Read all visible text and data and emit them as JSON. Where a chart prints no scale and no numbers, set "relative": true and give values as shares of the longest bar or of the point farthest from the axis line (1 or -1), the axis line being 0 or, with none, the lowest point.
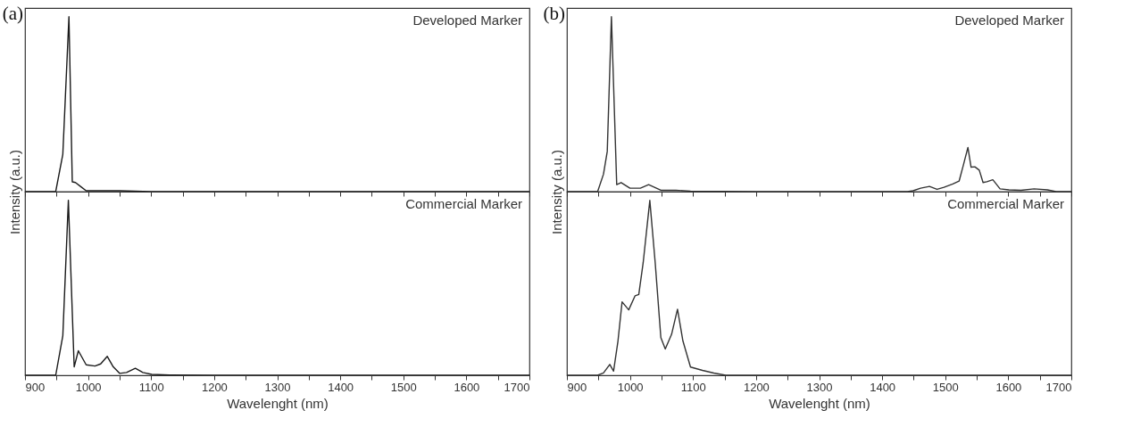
{
  "chart_data": [
    {
      "type": "line",
      "title": "(a)",
      "ylabel": "Intensity (a.u.)",
      "relative": true,
      "tick_labels": false,
      "annotations": [
        "Developed Marker"
      ],
      "xlim": [
        900,
        1700
      ],
      "xticks": [
        900,
        {
          "value": 950,
          "label": null
        },
        1000,
        {
          "value": 1050,
          "label": null
        },
        1100,
        {
          "value": 1150,
          "label": null
        },
        1200,
        {
          "value": 1250,
          "label": null
        },
        1300,
        {
          "value": 1350,
          "label": null
        },
        1400,
        {
          "value": 1450,
          "label": null
        },
        1500,
        {
          "value": 1550,
          "label": null
        },
        1600,
        {
          "value": 1650,
          "label": null
        },
        1700
      ],
      "x": [
        900,
        948.7,
        960,
        969.7,
        975,
        980,
        988,
        997,
        1050,
        1100,
        1700
      ],
      "series": [
        {
          "color": "#1a1a1a",
          "values": [
            0,
            0,
            0.214,
            1,
            0.056,
            0.052,
            0.03,
            0.005,
            0.005,
            0,
            0
          ]
        }
      ]
    },
    {
      "type": "line",
      "xlabel": "Wavelenght (nm)",
      "relative": true,
      "tick_labels": "x",
      "annotations": [
        "Commercial Marker"
      ],
      "xlim": [
        900,
        1700
      ],
      "xticks": [
        900,
        {
          "value": 950,
          "label": null
        },
        1000,
        {
          "value": 1050,
          "label": null
        },
        1100,
        {
          "value": 1150,
          "label": null
        },
        1200,
        {
          "value": 1250,
          "label": null
        },
        1300,
        {
          "value": 1350,
          "label": null
        },
        1400,
        {
          "value": 1450,
          "label": null
        },
        1500,
        {
          "value": 1550,
          "label": null
        },
        1600,
        {
          "value": 1650,
          "label": null
        },
        1700
      ],
      "x": [
        900,
        948.7,
        960,
        968.8,
        978,
        984.6,
        997,
        1011,
        1020,
        1030.5,
        1040,
        1050,
        1061,
        1075,
        1087,
        1101,
        1129,
        1200,
        1700
      ],
      "series": [
        {
          "color": "#1a1a1a",
          "values": [
            0,
            0,
            0.226,
            1,
            0.048,
            0.14,
            0.06,
            0.053,
            0.065,
            0.108,
            0.048,
            0.011,
            0.016,
            0.04,
            0.016,
            0.005,
            0.002,
            0,
            0
          ]
        }
      ]
    },
    {
      "type": "line",
      "title": "(b)",
      "ylabel": "Intensity (a.u.)",
      "relative": true,
      "tick_labels": false,
      "annotations": [
        "Developed Marker"
      ],
      "xlim": [
        900,
        1700
      ],
      "xticks": [
        900,
        {
          "value": 950,
          "label": null
        },
        1000,
        {
          "value": 1050,
          "label": null
        },
        1100,
        {
          "value": 1150,
          "label": null
        },
        1200,
        {
          "value": 1250,
          "label": null
        },
        1300,
        {
          "value": 1350,
          "label": null
        },
        1400,
        {
          "value": 1450,
          "label": null
        },
        1500,
        {
          "value": 1550,
          "label": null
        },
        1600,
        {
          "value": 1650,
          "label": null
        },
        1700
      ],
      "x": [
        900,
        948.7,
        958,
        964,
        970.6,
        979,
        986,
        1000,
        1016.5,
        1029.6,
        1049,
        1073,
        1096,
        1200,
        1440,
        1449,
        1461,
        1475,
        1487,
        1498,
        1512,
        1522,
        1529,
        1536,
        1541,
        1547,
        1554,
        1560,
        1566,
        1575.5,
        1587,
        1601,
        1620,
        1641,
        1662,
        1676,
        1700
      ],
      "series": [
        {
          "color": "#333333",
          "values": [
            0,
            0,
            0.1,
            0.23,
            1,
            0.04,
            0.052,
            0.02,
            0.02,
            0.04,
            0.008,
            0.008,
            0.003,
            0,
            0,
            0.005,
            0.02,
            0.03,
            0.013,
            0.025,
            0.044,
            0.06,
            0.155,
            0.253,
            0.14,
            0.142,
            0.123,
            0.052,
            0.057,
            0.068,
            0.016,
            0.01,
            0.008,
            0.016,
            0.01,
            0,
            0
          ]
        }
      ]
    },
    {
      "type": "line",
      "xlabel": "Wavelenght (nm)",
      "relative": true,
      "tick_labels": "x",
      "annotations": [
        "Commercial Marker"
      ],
      "xlim": [
        900,
        1700
      ],
      "xticks": [
        900,
        {
          "value": 950,
          "label": null
        },
        1000,
        {
          "value": 1050,
          "label": null
        },
        1100,
        {
          "value": 1150,
          "label": null
        },
        1200,
        {
          "value": 1250,
          "label": null
        },
        1300,
        {
          "value": 1350,
          "label": null
        },
        1400,
        {
          "value": 1450,
          "label": null
        },
        1500,
        {
          "value": 1550,
          "label": null
        },
        1600,
        {
          "value": 1650,
          "label": null
        },
        1700
      ],
      "x": [
        900,
        948.7,
        958,
        968,
        974,
        981,
        987.5,
        998,
        1008,
        1014,
        1021,
        1031.5,
        1040,
        1049,
        1056,
        1066,
        1075.4,
        1084,
        1096,
        1115,
        1133,
        1152,
        1700
      ],
      "series": [
        {
          "color": "#333333",
          "values": [
            0,
            0,
            0.013,
            0.062,
            0.024,
            0.196,
            0.42,
            0.374,
            0.454,
            0.462,
            0.645,
            1,
            0.645,
            0.215,
            0.15,
            0.234,
            0.378,
            0.196,
            0.047,
            0.028,
            0.013,
            0,
            0
          ]
        }
      ]
    }
  ]
}
